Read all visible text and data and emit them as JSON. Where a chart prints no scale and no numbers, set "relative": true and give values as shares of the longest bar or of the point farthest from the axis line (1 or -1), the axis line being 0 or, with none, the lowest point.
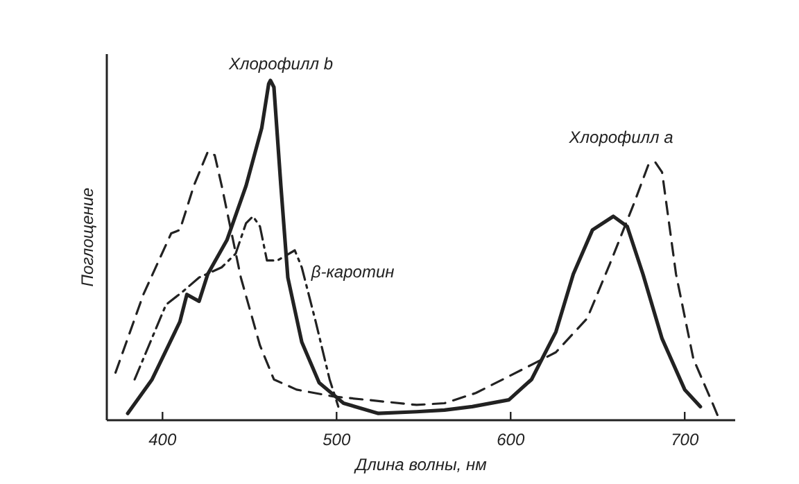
{
  "chart_data": {
    "type": "line",
    "relative": true,
    "xlabel": "Длина волны, нм",
    "ylabel": "Поглощение",
    "xlim": [
      368,
      729
    ],
    "xticks": [
      400,
      500,
      600,
      700
    ],
    "grid": false,
    "marker": "none",
    "series": [
      {
        "name": "Хлорофилл b",
        "color": "#222222",
        "line_style": "solid",
        "x": [
          380,
          394,
          410,
          414,
          421,
          426,
          437,
          448,
          457,
          461,
          462,
          464,
          468,
          472,
          480,
          490,
          504,
          524,
          546,
          562,
          578,
          599,
          612,
          626,
          636,
          647,
          659,
          667,
          676,
          687,
          700,
          709
        ],
        "values": [
          0.02,
          0.12,
          0.29,
          0.37,
          0.35,
          0.43,
          0.53,
          0.69,
          0.86,
          0.99,
          1.0,
          0.98,
          0.69,
          0.42,
          0.23,
          0.11,
          0.05,
          0.02,
          0.025,
          0.03,
          0.04,
          0.06,
          0.12,
          0.26,
          0.43,
          0.56,
          0.6,
          0.57,
          0.43,
          0.24,
          0.09,
          0.04
        ]
      },
      {
        "name": "Хлорофилл a",
        "color": "#222222",
        "line_style": "dashed",
        "x": [
          373,
          389,
          405,
          410,
          418,
          426,
          430,
          434,
          445,
          456,
          464,
          477,
          498,
          546,
          562,
          580,
          607,
          626,
          644,
          657,
          671,
          679,
          683,
          687,
          695,
          705,
          716,
          720
        ],
        "values": [
          0.14,
          0.37,
          0.55,
          0.56,
          0.69,
          0.79,
          0.78,
          0.69,
          0.42,
          0.22,
          0.12,
          0.09,
          0.07,
          0.045,
          0.05,
          0.08,
          0.15,
          0.2,
          0.3,
          0.46,
          0.64,
          0.75,
          0.76,
          0.73,
          0.43,
          0.18,
          0.05,
          0.0
        ]
      },
      {
        "name": "β-каротин",
        "color": "#222222",
        "line_style": "dashdot",
        "x": [
          384,
          402,
          412,
          421,
          434,
          442,
          448,
          452,
          456,
          460,
          466,
          476,
          480,
          488,
          496,
          501
        ],
        "values": [
          0.12,
          0.34,
          0.38,
          0.42,
          0.45,
          0.49,
          0.58,
          0.6,
          0.57,
          0.47,
          0.47,
          0.5,
          0.45,
          0.29,
          0.12,
          0.04
        ]
      }
    ]
  }
}
